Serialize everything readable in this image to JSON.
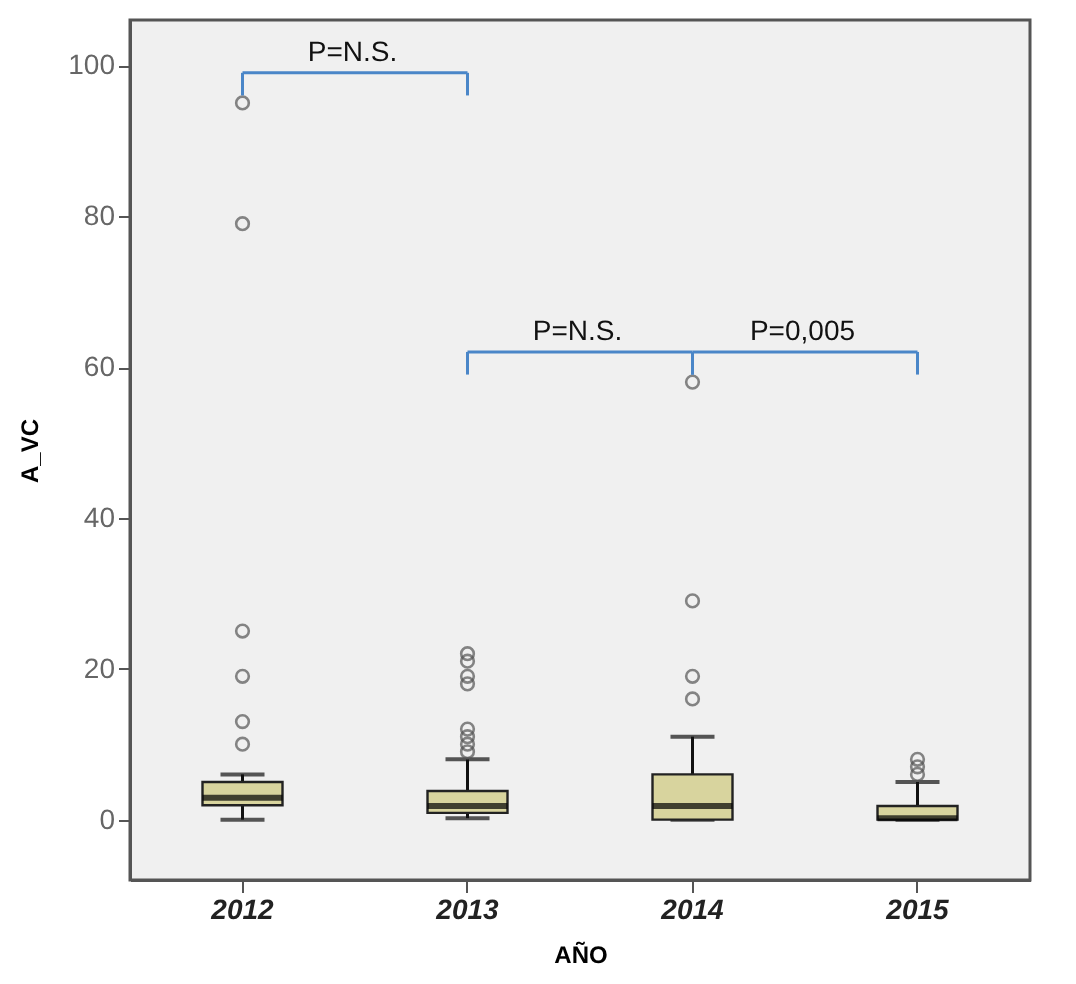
{
  "chart_data": {
    "type": "box",
    "xlabel": "AÑO",
    "ylabel": "A_VC",
    "categories": [
      "2012",
      "2013",
      "2014",
      "2015"
    ],
    "color": "#d8d49e",
    "ylim": [
      -8,
      106
    ],
    "yticks": [
      0,
      20,
      40,
      60,
      80,
      100
    ],
    "grid": false,
    "boxes": [
      {
        "low": 0,
        "q1": 1.9,
        "median": 2.9,
        "q3": 5,
        "high": 6,
        "outliers": [
          10,
          13,
          19,
          25,
          79,
          95
        ]
      },
      {
        "low": 0.2,
        "q1": 0.9,
        "median": 1.8,
        "q3": 3.8,
        "high": 8,
        "outliers": [
          9,
          10,
          11,
          12,
          18,
          19,
          21,
          22
        ]
      },
      {
        "low": 0,
        "q1": 0,
        "median": 1.8,
        "q3": 6,
        "high": 11,
        "outliers": [
          16,
          19,
          29,
          58
        ]
      },
      {
        "low": 0,
        "q1": 0,
        "median": 0.2,
        "q3": 1.8,
        "high": 5,
        "outliers": [
          6,
          7,
          8
        ]
      }
    ],
    "annotations": [
      "P=N.S.",
      "P=N.S.",
      "P=0,005"
    ]
  }
}
